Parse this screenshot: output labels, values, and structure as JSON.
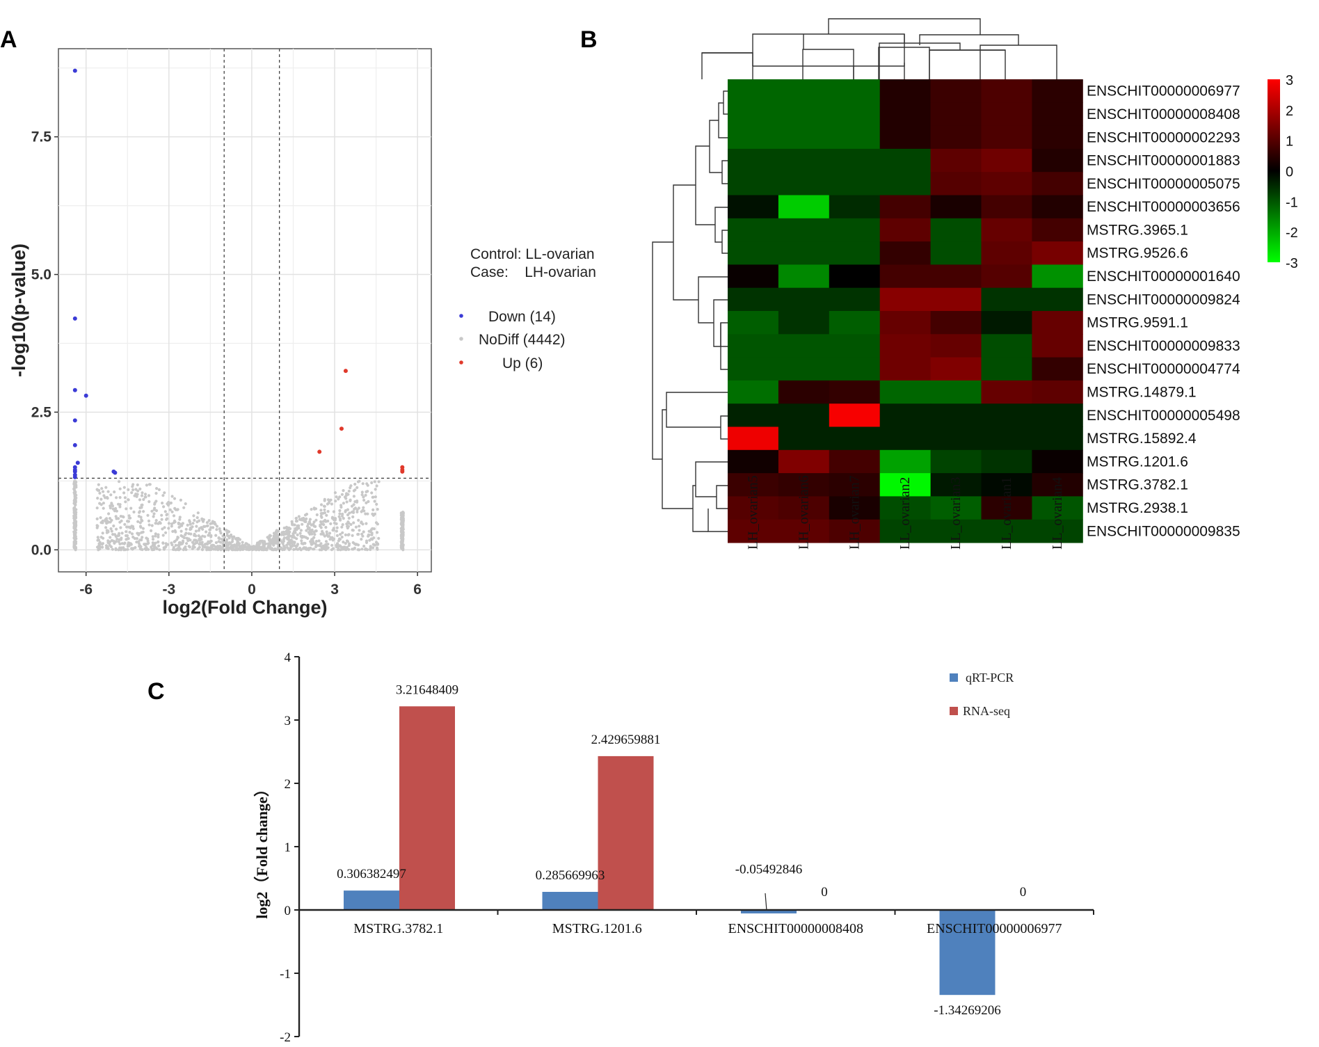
{
  "panels": {
    "a": "A",
    "b": "B",
    "c": "C"
  },
  "colors": {
    "down": "#3b3bd6",
    "nodiff": "#c8c8c8",
    "up": "#e0392b",
    "qrt": "#4f81bd",
    "rna": "#c0504d",
    "heat_low": "#00ff00",
    "heat_mid": "#000000",
    "heat_high": "#ff0000"
  },
  "chart_data": [
    {
      "type": "scatter",
      "title": "",
      "xlabel": "log2(Fold Change)",
      "ylabel": "-log10(p-value)",
      "xlim": [
        -7,
        6.5
      ],
      "ylim": [
        -0.4,
        9.1
      ],
      "xticks": [
        -6,
        -3,
        0,
        3,
        6
      ],
      "xtick_labels": [
        "-6",
        "-3",
        "0",
        "3",
        "6"
      ],
      "yticks": [
        0,
        2.5,
        5,
        7.5
      ],
      "ytick_labels": [
        "0.0",
        "2.5",
        "5.0",
        "7.5"
      ],
      "vlines": [
        -1,
        1
      ],
      "hline": 1.3,
      "grid": true,
      "control_label": "Control: LL-ovarian",
      "case_label": "Case:    LH-ovarian",
      "legend": [
        {
          "label": "Down (14)",
          "key": "down"
        },
        {
          "label": "NoDiff (4442)",
          "key": "nodiff"
        },
        {
          "label": "Up (6)",
          "key": "up"
        }
      ],
      "down_points": [
        [
          -6.4,
          8.7
        ],
        [
          -6.4,
          4.2
        ],
        [
          -6.4,
          2.9
        ],
        [
          -6.0,
          2.8
        ],
        [
          -6.4,
          2.35
        ],
        [
          -6.4,
          1.9
        ],
        [
          -6.3,
          1.58
        ],
        [
          -6.4,
          1.5
        ],
        [
          -6.4,
          1.42
        ],
        [
          -6.4,
          1.36
        ],
        [
          -5.0,
          1.42
        ],
        [
          -4.95,
          1.4
        ],
        [
          -6.4,
          1.32
        ],
        [
          -6.4,
          1.45
        ]
      ],
      "up_points": [
        [
          3.4,
          3.25
        ],
        [
          3.25,
          2.2
        ],
        [
          2.45,
          1.78
        ],
        [
          5.45,
          1.5
        ],
        [
          5.45,
          1.45
        ],
        [
          5.45,
          1.42
        ]
      ]
    },
    {
      "type": "heatmap",
      "columns": [
        "LH_ovarian5",
        "LH_ovarian6",
        "LH_ovarian7",
        "LL_ovarian2",
        "LL_ovarian3",
        "LL_ovarian1",
        "LL_ovarian4"
      ],
      "rows": [
        "ENSCHIT00000006977",
        "ENSCHIT00000008408",
        "ENSCHIT00000002293",
        "ENSCHIT00000001883",
        "ENSCHIT00000005075",
        "ENSCHIT00000003656",
        "MSTRG.3965.1",
        "MSTRG.9526.6",
        "ENSCHIT00000001640",
        "ENSCHIT00000009824",
        "MSTRG.9591.1",
        "ENSCHIT00000009833",
        "ENSCHIT00000004774",
        "MSTRG.14879.1",
        "ENSCHIT00000005498",
        "MSTRG.15892.4",
        "MSTRG.1201.6",
        "MSTRG.3782.1",
        "MSTRG.2938.1",
        "ENSCHIT00000009835"
      ],
      "values": [
        [
          -1.2,
          -1.2,
          -1.2,
          0.4,
          0.7,
          0.9,
          0.5
        ],
        [
          -1.2,
          -1.2,
          -1.2,
          0.4,
          0.7,
          0.9,
          0.5
        ],
        [
          -1.2,
          -1.2,
          -1.2,
          0.4,
          0.7,
          0.9,
          0.5
        ],
        [
          -0.8,
          -0.8,
          -0.8,
          -0.8,
          1.1,
          1.3,
          0.4
        ],
        [
          -0.8,
          -0.8,
          -0.8,
          -0.8,
          1.0,
          1.1,
          0.8
        ],
        [
          -0.2,
          -2.4,
          -0.5,
          0.8,
          0.3,
          0.8,
          0.4
        ],
        [
          -0.9,
          -0.9,
          -0.9,
          1.1,
          -0.9,
          1.2,
          0.8
        ],
        [
          -0.9,
          -0.9,
          -0.9,
          0.6,
          -0.9,
          1.1,
          1.4
        ],
        [
          0.1,
          -1.6,
          0.0,
          0.8,
          0.8,
          1.0,
          -1.7
        ],
        [
          -0.6,
          -0.6,
          -0.6,
          1.6,
          1.6,
          -0.6,
          -0.6
        ],
        [
          -1.1,
          -0.6,
          -1.1,
          1.2,
          0.8,
          -0.3,
          1.2
        ],
        [
          -1.0,
          -1.0,
          -1.0,
          1.3,
          1.2,
          -0.9,
          1.2
        ],
        [
          -1.0,
          -1.0,
          -1.0,
          1.3,
          1.5,
          -0.9,
          0.6
        ],
        [
          -1.3,
          0.5,
          0.6,
          -1.2,
          -1.2,
          1.2,
          1.1
        ],
        [
          -0.4,
          -0.4,
          2.9,
          -0.4,
          -0.4,
          -0.4,
          -0.4
        ],
        [
          2.8,
          -0.4,
          -0.4,
          -0.4,
          -0.4,
          -0.4,
          -0.4
        ],
        [
          0.2,
          1.5,
          0.8,
          -1.9,
          -0.8,
          -0.6,
          0.1
        ],
        [
          0.7,
          0.6,
          0.5,
          -2.9,
          -0.3,
          -0.1,
          0.4
        ],
        [
          1.0,
          0.9,
          0.3,
          -0.9,
          -1.1,
          0.5,
          -1.0
        ],
        [
          1.1,
          1.1,
          0.9,
          -0.8,
          -0.8,
          -0.8,
          -0.8
        ]
      ],
      "color_scale": {
        "min": -3,
        "max": 3,
        "ticks": [
          "3",
          "2",
          "1",
          "0",
          "-1",
          "-2",
          "-3"
        ]
      }
    },
    {
      "type": "bar",
      "categories": [
        "MSTRG.3782.1",
        "MSTRG.1201.6",
        "ENSCHIT00000008408",
        "ENSCHIT00000006977"
      ],
      "series": [
        {
          "name": "qRT-PCR",
          "values": [
            0.306382497,
            0.285669963,
            -0.05492846,
            -1.34269206
          ],
          "labels": [
            "0.306382497",
            "0.285669963",
            "-0.05492846",
            "-1.34269206"
          ]
        },
        {
          "name": "RNA-seq",
          "values": [
            3.21648409,
            2.429659881,
            0,
            0
          ],
          "labels": [
            "3.21648409",
            "2.429659881",
            "0",
            "0"
          ]
        }
      ],
      "ylabel": "log2（Fold change）",
      "ylim": [
        -2,
        4
      ],
      "yticks": [
        -2,
        -1,
        0,
        1,
        2,
        3,
        4
      ],
      "ytick_labels": [
        "-2",
        "-1",
        "0",
        "1",
        "2",
        "3",
        "4"
      ],
      "legend": "top-right"
    }
  ]
}
